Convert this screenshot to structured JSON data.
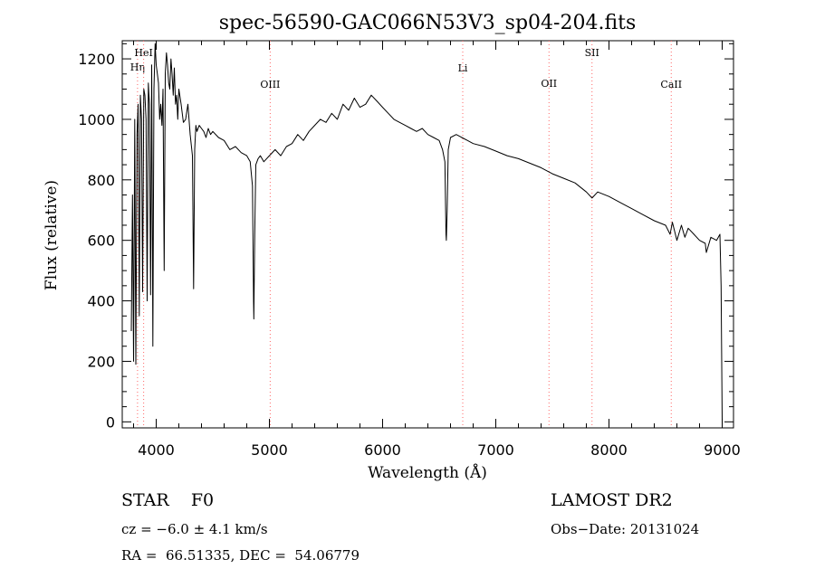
{
  "chart_data": {
    "type": "line",
    "title": "spec-56590-GAC066N53V3_sp04-204.fits",
    "xlabel": "Wavelength (Å)",
    "ylabel": "Flux (relative)",
    "xlim": [
      3700,
      9100
    ],
    "ylim": [
      -20,
      1260
    ],
    "x_ticks": [
      4000,
      5000,
      6000,
      7000,
      8000,
      9000
    ],
    "y_ticks": [
      0,
      200,
      400,
      600,
      800,
      1000,
      1200
    ],
    "grid": false,
    "series": [
      {
        "x": [
          3780,
          3790,
          3800,
          3810,
          3820,
          3830,
          3840,
          3850,
          3860,
          3870,
          3880,
          3890,
          3900,
          3910,
          3920,
          3930,
          3940,
          3950,
          3960,
          3970,
          3980,
          3990,
          4000,
          4010,
          4020,
          4030,
          4040,
          4050,
          4060,
          4070,
          4080,
          4090,
          4100,
          4110,
          4120,
          4130,
          4140,
          4150,
          4160,
          4170,
          4180,
          4190,
          4200,
          4220,
          4240,
          4260,
          4280,
          4300,
          4320,
          4330,
          4340,
          4350,
          4360,
          4380,
          4400,
          4420,
          4440,
          4460,
          4480,
          4500,
          4550,
          4600,
          4650,
          4700,
          4750,
          4800,
          4830,
          4850,
          4860,
          4862,
          4870,
          4880,
          4900,
          4920,
          4950,
          5000,
          5050,
          5100,
          5150,
          5200,
          5250,
          5300,
          5350,
          5400,
          5450,
          5500,
          5550,
          5600,
          5650,
          5700,
          5750,
          5800,
          5850,
          5900,
          5950,
          6000,
          6050,
          6100,
          6150,
          6200,
          6250,
          6300,
          6350,
          6400,
          6450,
          6500,
          6530,
          6550,
          6560,
          6563,
          6570,
          6580,
          6600,
          6650,
          6700,
          6750,
          6800,
          6900,
          7000,
          7100,
          7200,
          7300,
          7400,
          7500,
          7600,
          7700,
          7800,
          7850,
          7900,
          8000,
          8100,
          8200,
          8300,
          8400,
          8500,
          8540,
          8560,
          8600,
          8640,
          8670,
          8700,
          8750,
          8800,
          8850,
          8860,
          8900,
          8950,
          8980,
          8990,
          9000
        ],
        "y": [
          300,
          750,
          200,
          1000,
          190,
          950,
          1050,
          350,
          1080,
          1000,
          430,
          1100,
          1080,
          1000,
          400,
          1120,
          1050,
          420,
          1180,
          250,
          1100,
          1250,
          1180,
          1150,
          1120,
          1000,
          1050,
          980,
          1100,
          500,
          1150,
          1220,
          1180,
          1120,
          1100,
          1200,
          1150,
          1080,
          1170,
          1050,
          1080,
          1000,
          1100,
          1050,
          990,
          1000,
          1050,
          950,
          880,
          440,
          900,
          980,
          960,
          980,
          970,
          960,
          940,
          970,
          950,
          960,
          940,
          930,
          900,
          910,
          890,
          880,
          860,
          780,
          400,
          340,
          620,
          850,
          870,
          880,
          860,
          880,
          900,
          880,
          910,
          920,
          950,
          930,
          960,
          980,
          1000,
          990,
          1020,
          1000,
          1050,
          1030,
          1070,
          1040,
          1050,
          1080,
          1060,
          1040,
          1020,
          1000,
          990,
          980,
          970,
          960,
          970,
          950,
          940,
          930,
          900,
          860,
          620,
          600,
          700,
          900,
          940,
          950,
          940,
          930,
          920,
          910,
          895,
          880,
          870,
          855,
          840,
          820,
          805,
          790,
          760,
          740,
          760,
          745,
          725,
          705,
          685,
          665,
          650,
          620,
          660,
          600,
          650,
          610,
          640,
          620,
          600,
          590,
          560,
          610,
          600,
          620,
          450,
          0
        ]
      }
    ],
    "line_markers": [
      {
        "label": "Hη",
        "x": 3835,
        "color": "#ff6666"
      },
      {
        "label": "HeI",
        "x": 3889,
        "color": "#ff6666"
      },
      {
        "label": "OIII",
        "x": 5007,
        "color": "#ff6666"
      },
      {
        "label": "Li",
        "x": 6708,
        "color": "#ff6666"
      },
      {
        "label": "OII",
        "x": 7470,
        "color": "#ff6666"
      },
      {
        "label": "SII",
        "x": 7850,
        "color": "#ff6666"
      },
      {
        "label": "CaII",
        "x": 8550,
        "color": "#ff6666"
      }
    ]
  },
  "info": {
    "star_class": "STAR    F0",
    "survey": "LAMOST DR2",
    "redshift": "cz = −6.0 ± 4.1 km/s",
    "obs_date": "Obs−Date: 20131024",
    "radec": "RA =  66.51335, DEC =  54.06779"
  }
}
